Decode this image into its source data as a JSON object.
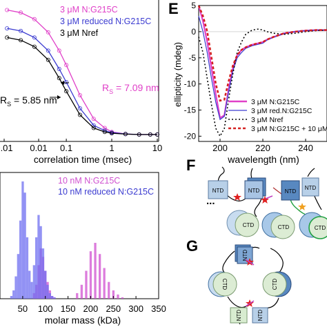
{
  "panel_letters": {
    "e": "E",
    "f": "F",
    "g": "G"
  },
  "domain_labels": {
    "ntd": "NTD",
    "ctd": "CTD",
    "ellipsis": "..."
  },
  "colors": {
    "magenta": "#e040c8",
    "blue": "#3a3ad0",
    "black": "#000000",
    "red": "#d42020",
    "hist_magenta": "#d050d0",
    "hist_blue": "#6f6ff0",
    "ntd_fill": "#b8d0e8",
    "ntd_fill_dark": "#5888c0",
    "ctd_fill": "#d8ecd0",
    "ctd_fill_blue": "#a8c8e8",
    "star_red": "#e02020",
    "star_orange": "#f0a020"
  },
  "chart_data": [
    {
      "type": "line",
      "xlabel": "correlation time (msec)",
      "ylabel": "",
      "xscale": "log",
      "xticks": [
        "0.01",
        "0.01",
        "0.1",
        "1",
        "10"
      ],
      "series": [
        {
          "name": "3 μM N:G215C",
          "color": "#e040c8",
          "x": [
            0.005,
            0.01,
            0.02,
            0.04,
            0.07,
            0.1,
            0.2,
            0.4,
            0.7,
            1,
            2,
            4,
            7,
            10
          ],
          "y": [
            0.95,
            0.93,
            0.88,
            0.78,
            0.64,
            0.53,
            0.3,
            0.12,
            0.05,
            0.02,
            0.005,
            0,
            0,
            0
          ]
        },
        {
          "name": "3 μM reduced N:G215C",
          "color": "#3a3ad0",
          "x": [
            0.005,
            0.01,
            0.02,
            0.04,
            0.07,
            0.1,
            0.2,
            0.4,
            0.7,
            1,
            2,
            4,
            7,
            10
          ],
          "y": [
            0.81,
            0.79,
            0.74,
            0.64,
            0.5,
            0.4,
            0.2,
            0.07,
            0.03,
            0.015,
            0.005,
            0,
            0,
            0
          ]
        },
        {
          "name": "3 μM Nref",
          "color": "#000000",
          "x": [
            0.005,
            0.01,
            0.02,
            0.04,
            0.07,
            0.1,
            0.2,
            0.4,
            0.7,
            1,
            2,
            4,
            7,
            10
          ],
          "y": [
            0.74,
            0.72,
            0.67,
            0.57,
            0.43,
            0.33,
            0.15,
            0.05,
            0.02,
            0.01,
            0.003,
            0,
            0,
            0
          ]
        }
      ],
      "annotations": [
        {
          "text": "R",
          "sub": "S",
          "rest": " = 7.09 nm",
          "color": "#e040c8"
        },
        {
          "text": "R",
          "sub": "S",
          "rest": " = 5.85 nm",
          "color": "#000000"
        }
      ]
    },
    {
      "type": "bar",
      "subtype": "histogram",
      "xlabel": "molar mass (kDa)",
      "xlim": [
        0,
        350
      ],
      "xticks": [
        "50",
        "100",
        "150",
        "200",
        "250",
        "300",
        "350"
      ],
      "series": [
        {
          "name": "10 nM N:G215C",
          "color": "#d050d0",
          "x": [
            75,
            80,
            85,
            90,
            95,
            100,
            105,
            110,
            115,
            120,
            170,
            180,
            190,
            200,
            210,
            220,
            230,
            240,
            250,
            260,
            270
          ],
          "values": [
            2,
            5,
            12,
            18,
            15,
            10,
            6,
            3,
            1,
            0.5,
            2,
            5,
            10,
            17,
            20,
            16,
            11,
            6,
            3,
            1.5,
            0.5
          ]
        },
        {
          "name": "10 nM reduced N:G215C",
          "color": "#6f6ff0",
          "x": [
            25,
            30,
            35,
            40,
            45,
            50,
            55,
            60,
            65,
            70,
            75,
            80,
            85,
            90,
            95,
            100,
            105,
            110,
            115,
            120
          ],
          "values": [
            1,
            3,
            8,
            16,
            28,
            42,
            38,
            22,
            10,
            6,
            12,
            22,
            30,
            26,
            18,
            10,
            5,
            2,
            1,
            0.5
          ]
        }
      ]
    },
    {
      "type": "line",
      "xlabel": "wavelength (nm)",
      "ylabel": "ellipticity (mdeg)",
      "xlim": [
        190,
        250
      ],
      "ylim": [
        -21,
        5
      ],
      "xticks": [
        "200",
        "220",
        "240"
      ],
      "yticks": [
        "5",
        "0",
        "-5",
        "-10",
        "-15",
        "-20"
      ],
      "series": [
        {
          "name": "3 μM N:G215C",
          "color": "#e040c8",
          "x": [
            190,
            192,
            194,
            196,
            198,
            200,
            202,
            204,
            206,
            208,
            210,
            212,
            215,
            218,
            220,
            222,
            225,
            230,
            235,
            240,
            245,
            250
          ],
          "y": [
            5,
            2,
            -2,
            -7,
            -12,
            -16.5,
            -16,
            -11,
            -7,
            -4.5,
            -3.5,
            -3,
            -2.5,
            -2.2,
            -2,
            -1.5,
            -1,
            -0.3,
            0,
            0.2,
            0.3,
            0.3
          ]
        },
        {
          "name": "3 μM red.N:G215C",
          "color": "#3a3ad0",
          "x": [
            190,
            192,
            194,
            196,
            198,
            200,
            202,
            204,
            206,
            208,
            210,
            212,
            215,
            218,
            220,
            222,
            225,
            230,
            235,
            240,
            245,
            250
          ],
          "y": [
            3,
            0,
            -4,
            -9,
            -13.5,
            -16.8,
            -16.2,
            -11.5,
            -7.5,
            -5,
            -4,
            -3.2,
            -2.7,
            -2.4,
            -2.2,
            -1.6,
            -1.1,
            -0.4,
            0,
            0.2,
            0.3,
            0.3
          ]
        },
        {
          "name": "3 μM Nref",
          "color": "#000000",
          "dash": "2,3",
          "x": [
            190,
            192,
            194,
            196,
            198,
            200,
            202,
            204,
            206,
            208,
            210,
            212,
            215,
            218,
            220,
            222,
            225,
            230,
            235,
            240,
            245,
            250
          ],
          "y": [
            -1,
            -4,
            -9,
            -14,
            -18.5,
            -20,
            -18.5,
            -13,
            -8,
            -4,
            -2,
            -0.5,
            0.3,
            0.5,
            0.3,
            0,
            -0.3,
            -0.5,
            -0.3,
            0,
            0.2,
            0.3
          ]
        },
        {
          "name": "3 μM N:G215C + 10 μM",
          "color": "#d42020",
          "dash": "4,3",
          "x": [
            190,
            192,
            194,
            196,
            198,
            200,
            202,
            204,
            206,
            208,
            210,
            212,
            215,
            218,
            220,
            222,
            225,
            230,
            235,
            240,
            245,
            250
          ],
          "y": [
            5,
            3,
            0,
            -5,
            -10,
            -13.2,
            -13,
            -9.5,
            -6.5,
            -4.5,
            -3.5,
            -3,
            -2.5,
            -2.2,
            -2,
            -1.5,
            -1,
            -0.3,
            0,
            0.2,
            0.3,
            0.3
          ]
        }
      ]
    }
  ]
}
